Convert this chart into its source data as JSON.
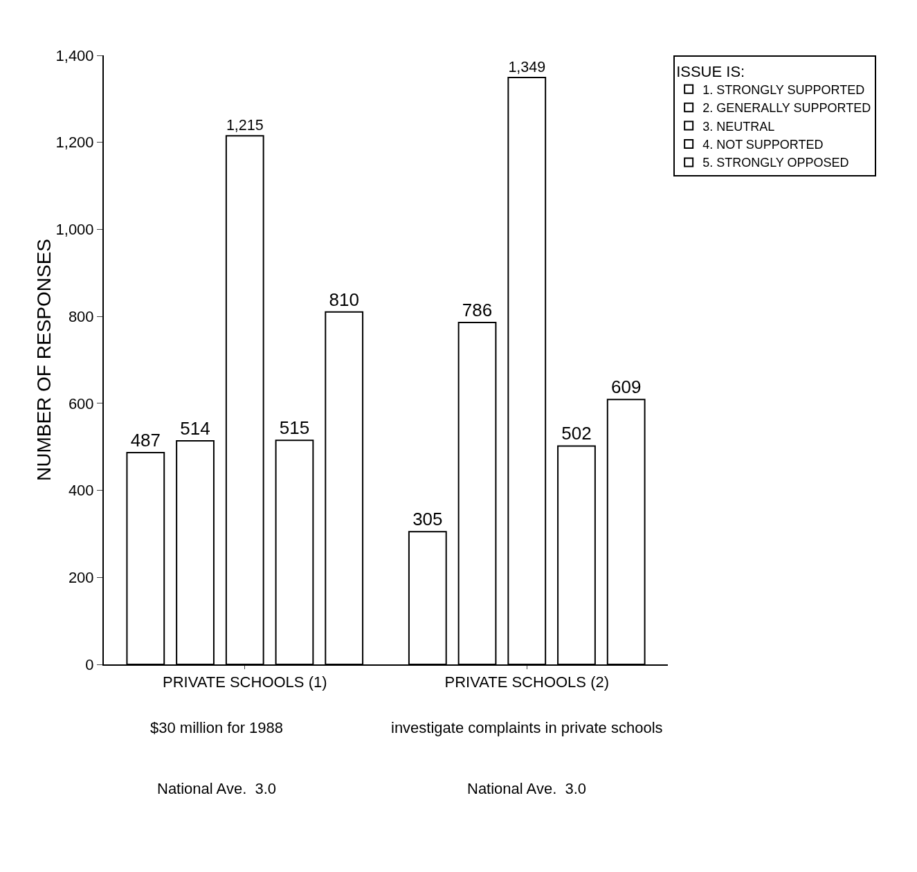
{
  "chart_data": {
    "type": "bar",
    "ylabel": "NUMBER OF RESPONSES",
    "legend_title": "ISSUE IS:",
    "legend": "top right",
    "grid": false,
    "categories": [
      "PRIVATE SCHOOLS (1)",
      "PRIVATE SCHOOLS (2)"
    ],
    "series": [
      {
        "name": "1. STRONGLY SUPPORTED",
        "color": "#ffffff",
        "values": [
          487,
          305
        ],
        "value_labels": [
          "487",
          "305"
        ]
      },
      {
        "name": "2. GENERALLY SUPPORTED",
        "color": "#ffffff",
        "values": [
          514,
          786
        ],
        "value_labels": [
          "514",
          "786"
        ]
      },
      {
        "name": "3. NEUTRAL",
        "color": "#ffffff",
        "values": [
          1215,
          1349
        ],
        "value_labels": [
          "1,215",
          "1,349"
        ]
      },
      {
        "name": "4. NOT SUPPORTED",
        "color": "#ffffff",
        "values": [
          515,
          502
        ],
        "value_labels": [
          "515",
          "502"
        ]
      },
      {
        "name": "5. STRONGLY OPPOSED",
        "color": "#ffffff",
        "values": [
          810,
          609
        ],
        "value_labels": [
          "810",
          "609"
        ]
      }
    ],
    "ylim": [
      0,
      1400
    ],
    "yticks": [
      0,
      200,
      400,
      600,
      800,
      {
        "value": 1000,
        "label": "1,000"
      },
      {
        "value": 1200,
        "label": "1,200"
      },
      {
        "value": 1400,
        "label": "1,400"
      }
    ],
    "annotations": [
      "$30 million for 1988",
      "investigate complaints in private schools",
      "National Ave.  3.0",
      "National Ave.  3.0"
    ]
  }
}
